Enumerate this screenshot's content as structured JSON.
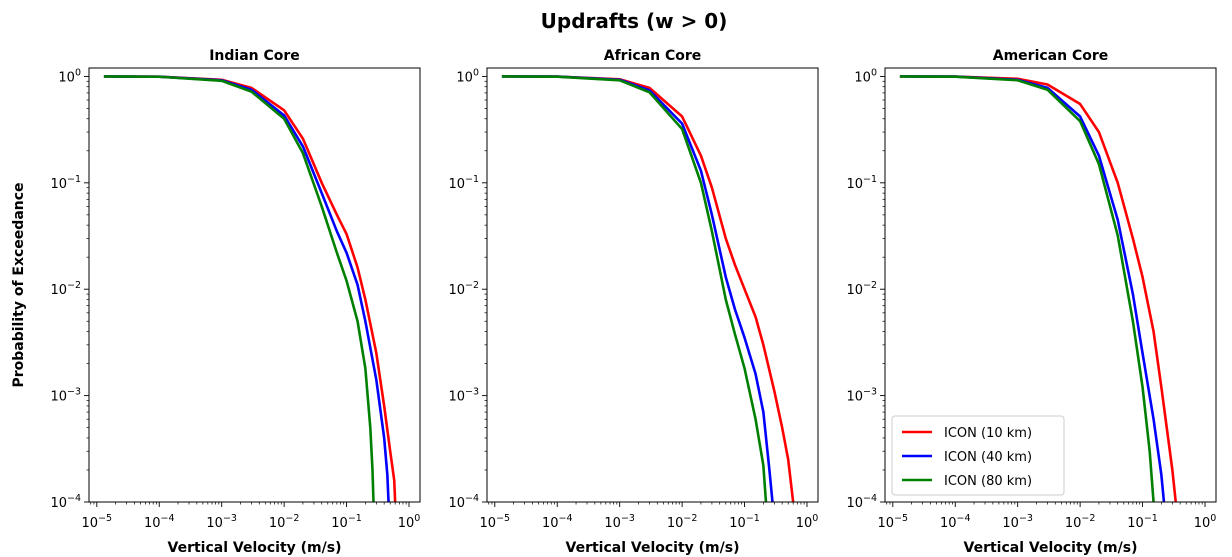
{
  "figure": {
    "suptitle": "Updrafts (w > 0)",
    "ylabel": "Probability of Exceedance"
  },
  "chart_data": [
    {
      "type": "line",
      "title": "Indian Core",
      "xlabel": "Vertical Velocity (m/s)",
      "ylabel": "Probability of Exceedance",
      "xscale": "log",
      "yscale": "log",
      "xlim": [
        7.5e-06,
        1.5
      ],
      "ylim": [
        0.0001,
        1.2
      ],
      "xticks": [
        1e-05,
        0.0001,
        0.001,
        0.01,
        0.1,
        1
      ],
      "xtick_labels": [
        {
          "base": "10",
          "exp": "−5"
        },
        {
          "base": "10",
          "exp": "−4"
        },
        {
          "base": "10",
          "exp": "−3"
        },
        {
          "base": "10",
          "exp": "−2"
        },
        {
          "base": "10",
          "exp": "−1"
        },
        {
          "base": "10",
          "exp": "0"
        }
      ],
      "yticks": [
        1,
        0.1,
        0.01,
        0.001,
        0.0001
      ],
      "ytick_labels": [
        {
          "base": "10",
          "exp": "0"
        },
        {
          "base": "10",
          "exp": "−1"
        },
        {
          "base": "10",
          "exp": "−2"
        },
        {
          "base": "10",
          "exp": "−3"
        },
        {
          "base": "10",
          "exp": "−4"
        }
      ],
      "grid": false,
      "legend": null,
      "series": [
        {
          "name": "ICON (10 km)",
          "color": "#ff0000",
          "points": [
            [
              1.3e-05,
              1
            ],
            [
              0.0001,
              0.995
            ],
            [
              0.001,
              0.93
            ],
            [
              0.003,
              0.78
            ],
            [
              0.01,
              0.48
            ],
            [
              0.02,
              0.26
            ],
            [
              0.04,
              0.1
            ],
            [
              0.07,
              0.05
            ],
            [
              0.1,
              0.033
            ],
            [
              0.15,
              0.016
            ],
            [
              0.2,
              0.008
            ],
            [
              0.3,
              0.0025
            ],
            [
              0.4,
              0.0008
            ],
            [
              0.5,
              0.0003
            ],
            [
              0.58,
              0.00016
            ],
            [
              0.6,
              0.0001
            ]
          ]
        },
        {
          "name": "ICON (40 km)",
          "color": "#0000ff",
          "points": [
            [
              1.3e-05,
              1
            ],
            [
              0.0001,
              0.995
            ],
            [
              0.001,
              0.92
            ],
            [
              0.003,
              0.75
            ],
            [
              0.01,
              0.43
            ],
            [
              0.02,
              0.22
            ],
            [
              0.04,
              0.08
            ],
            [
              0.07,
              0.035
            ],
            [
              0.1,
              0.022
            ],
            [
              0.15,
              0.011
            ],
            [
              0.2,
              0.005
            ],
            [
              0.3,
              0.0014
            ],
            [
              0.4,
              0.0004
            ],
            [
              0.45,
              0.00018
            ],
            [
              0.47,
              0.0001
            ]
          ]
        },
        {
          "name": "ICON (80 km)",
          "color": "#008000",
          "points": [
            [
              1.3e-05,
              1
            ],
            [
              0.0001,
              0.993
            ],
            [
              0.001,
              0.91
            ],
            [
              0.003,
              0.72
            ],
            [
              0.01,
              0.4
            ],
            [
              0.02,
              0.19
            ],
            [
              0.04,
              0.06
            ],
            [
              0.07,
              0.022
            ],
            [
              0.1,
              0.012
            ],
            [
              0.15,
              0.005
            ],
            [
              0.2,
              0.0018
            ],
            [
              0.24,
              0.0005
            ],
            [
              0.26,
              0.0002
            ],
            [
              0.27,
              0.0001
            ]
          ]
        }
      ]
    },
    {
      "type": "line",
      "title": "African Core",
      "xlabel": "Vertical Velocity (m/s)",
      "xscale": "log",
      "yscale": "log",
      "xlim": [
        7.5e-06,
        1.5
      ],
      "ylim": [
        0.0001,
        1.2
      ],
      "xticks": [
        1e-05,
        0.0001,
        0.001,
        0.01,
        0.1,
        1
      ],
      "xtick_labels": [
        {
          "base": "10",
          "exp": "−5"
        },
        {
          "base": "10",
          "exp": "−4"
        },
        {
          "base": "10",
          "exp": "−3"
        },
        {
          "base": "10",
          "exp": "−2"
        },
        {
          "base": "10",
          "exp": "−1"
        },
        {
          "base": "10",
          "exp": "0"
        }
      ],
      "yticks": [
        1,
        0.1,
        0.01,
        0.001,
        0.0001
      ],
      "ytick_labels": [
        {
          "base": "10",
          "exp": "0"
        },
        {
          "base": "10",
          "exp": "−1"
        },
        {
          "base": "10",
          "exp": "−2"
        },
        {
          "base": "10",
          "exp": "−3"
        },
        {
          "base": "10",
          "exp": "−4"
        }
      ],
      "grid": false,
      "legend": null,
      "series": [
        {
          "name": "ICON (10 km)",
          "color": "#ff0000",
          "points": [
            [
              1.3e-05,
              1
            ],
            [
              0.0001,
              0.997
            ],
            [
              0.001,
              0.94
            ],
            [
              0.003,
              0.78
            ],
            [
              0.01,
              0.42
            ],
            [
              0.02,
              0.18
            ],
            [
              0.03,
              0.09
            ],
            [
              0.05,
              0.03
            ],
            [
              0.07,
              0.017
            ],
            [
              0.1,
              0.01
            ],
            [
              0.15,
              0.0055
            ],
            [
              0.2,
              0.003
            ],
            [
              0.3,
              0.0011
            ],
            [
              0.4,
              0.0005
            ],
            [
              0.5,
              0.00025
            ],
            [
              0.6,
              0.0001
            ]
          ]
        },
        {
          "name": "ICON (40 km)",
          "color": "#0000ff",
          "points": [
            [
              1.3e-05,
              1
            ],
            [
              0.0001,
              0.996
            ],
            [
              0.001,
              0.93
            ],
            [
              0.003,
              0.74
            ],
            [
              0.01,
              0.36
            ],
            [
              0.02,
              0.13
            ],
            [
              0.03,
              0.05
            ],
            [
              0.05,
              0.013
            ],
            [
              0.07,
              0.0065
            ],
            [
              0.1,
              0.0035
            ],
            [
              0.15,
              0.0016
            ],
            [
              0.2,
              0.0007
            ],
            [
              0.25,
              0.0002
            ],
            [
              0.28,
              0.0001
            ]
          ]
        },
        {
          "name": "ICON (80 km)",
          "color": "#008000",
          "points": [
            [
              1.3e-05,
              1
            ],
            [
              0.0001,
              0.995
            ],
            [
              0.001,
              0.92
            ],
            [
              0.003,
              0.71
            ],
            [
              0.01,
              0.32
            ],
            [
              0.02,
              0.1
            ],
            [
              0.03,
              0.035
            ],
            [
              0.05,
              0.008
            ],
            [
              0.07,
              0.0038
            ],
            [
              0.1,
              0.0018
            ],
            [
              0.15,
              0.0006
            ],
            [
              0.2,
              0.00022
            ],
            [
              0.22,
              0.0001
            ]
          ]
        }
      ]
    },
    {
      "type": "line",
      "title": "American Core",
      "xlabel": "Vertical Velocity (m/s)",
      "xscale": "log",
      "yscale": "log",
      "xlim": [
        7.5e-06,
        1.5
      ],
      "ylim": [
        0.0001,
        1.2
      ],
      "xticks": [
        1e-05,
        0.0001,
        0.001,
        0.01,
        0.1,
        1
      ],
      "xtick_labels": [
        {
          "base": "10",
          "exp": "−5"
        },
        {
          "base": "10",
          "exp": "−4"
        },
        {
          "base": "10",
          "exp": "−3"
        },
        {
          "base": "10",
          "exp": "−2"
        },
        {
          "base": "10",
          "exp": "−1"
        },
        {
          "base": "10",
          "exp": "0"
        }
      ],
      "yticks": [
        1,
        0.1,
        0.01,
        0.001,
        0.0001
      ],
      "ytick_labels": [
        {
          "base": "10",
          "exp": "0"
        },
        {
          "base": "10",
          "exp": "−1"
        },
        {
          "base": "10",
          "exp": "−2"
        },
        {
          "base": "10",
          "exp": "−3"
        },
        {
          "base": "10",
          "exp": "−4"
        }
      ],
      "grid": false,
      "legend": "lower-left",
      "series": [
        {
          "name": "ICON (10 km)",
          "color": "#ff0000",
          "points": [
            [
              1.3e-05,
              1
            ],
            [
              0.0001,
              0.997
            ],
            [
              0.001,
              0.95
            ],
            [
              0.003,
              0.84
            ],
            [
              0.01,
              0.55
            ],
            [
              0.02,
              0.3
            ],
            [
              0.04,
              0.1
            ],
            [
              0.07,
              0.03
            ],
            [
              0.1,
              0.013
            ],
            [
              0.15,
              0.004
            ],
            [
              0.2,
              0.0012
            ],
            [
              0.3,
              0.0002
            ],
            [
              0.34,
              0.0001
            ]
          ]
        },
        {
          "name": "ICON (40 km)",
          "color": "#0000ff",
          "points": [
            [
              1.3e-05,
              1
            ],
            [
              0.0001,
              0.996
            ],
            [
              0.001,
              0.93
            ],
            [
              0.003,
              0.78
            ],
            [
              0.01,
              0.42
            ],
            [
              0.02,
              0.18
            ],
            [
              0.04,
              0.045
            ],
            [
              0.07,
              0.009
            ],
            [
              0.1,
              0.0025
            ],
            [
              0.15,
              0.0006
            ],
            [
              0.2,
              0.00018
            ],
            [
              0.22,
              0.0001
            ]
          ]
        },
        {
          "name": "ICON (80 km)",
          "color": "#008000",
          "points": [
            [
              1.3e-05,
              1
            ],
            [
              0.0001,
              0.995
            ],
            [
              0.001,
              0.92
            ],
            [
              0.003,
              0.75
            ],
            [
              0.01,
              0.38
            ],
            [
              0.02,
              0.15
            ],
            [
              0.04,
              0.032
            ],
            [
              0.07,
              0.005
            ],
            [
              0.1,
              0.0012
            ],
            [
              0.13,
              0.0003
            ],
            [
              0.15,
              0.0001
            ]
          ]
        }
      ]
    }
  ]
}
